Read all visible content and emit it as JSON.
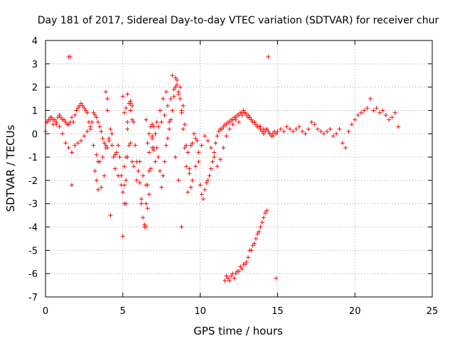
{
  "chart_data": {
    "type": "scatter",
    "title": "Day 181 of 2017, Sidereal Day-to-day VTEC variation (SDTVAR) for receiver chur",
    "xlabel": "GPS time / hours",
    "ylabel": "SDTVAR / TECUs",
    "xlim": [
      0,
      25
    ],
    "ylim": [
      -7,
      4
    ],
    "xticks": [
      "0",
      "5",
      "10",
      "15",
      "20",
      "25"
    ],
    "yticks": [
      "4",
      "3",
      "2",
      "1",
      "0",
      "-1",
      "-2",
      "-3",
      "-4",
      "-5",
      "-6",
      "-7"
    ],
    "grid": true,
    "marker": "+",
    "color": "#ff0000",
    "series": [
      {
        "name": "SDTVAR",
        "x": [
          0.0,
          0.1,
          0.2,
          0.3,
          0.4,
          0.5,
          0.6,
          0.7,
          0.8,
          0.9,
          1.0,
          1.1,
          1.2,
          1.3,
          1.4,
          1.5,
          1.6,
          1.7,
          1.8,
          1.9,
          2.0,
          2.1,
          2.2,
          2.3,
          2.4,
          2.5,
          2.6,
          2.7,
          2.8,
          2.9,
          3.0,
          3.1,
          3.2,
          3.3,
          3.4,
          3.5,
          3.6,
          3.7,
          3.8,
          3.9,
          4.0,
          4.1,
          4.2,
          4.3,
          4.4,
          4.5,
          4.6,
          4.7,
          4.8,
          4.9,
          5.0,
          5.1,
          5.2,
          5.3,
          5.4,
          5.5,
          5.6,
          5.7,
          5.8,
          5.9,
          6.0,
          6.1,
          6.2,
          6.3,
          6.4,
          6.5,
          6.6,
          6.7,
          6.8,
          6.9,
          7.0,
          7.1,
          7.2,
          7.3,
          7.4,
          7.5,
          7.6,
          7.7,
          7.8,
          7.9,
          8.0,
          8.1,
          8.2,
          8.3,
          8.4,
          8.5,
          8.6,
          8.7,
          8.8,
          8.9,
          9.0,
          9.1,
          9.2,
          9.3,
          9.4,
          9.5,
          9.6,
          9.7,
          9.8,
          9.9,
          10.0,
          10.1,
          10.2,
          10.3,
          10.4,
          10.5,
          10.6,
          10.7,
          10.8,
          10.9,
          11.0,
          11.1,
          11.2,
          11.3,
          11.4,
          11.5,
          11.6,
          11.7,
          11.8,
          11.9,
          12.0,
          12.1,
          12.2,
          12.3,
          12.4,
          12.5,
          12.6,
          12.7,
          12.8,
          12.9,
          13.0,
          13.1,
          13.2,
          13.3,
          13.4,
          13.5,
          13.6,
          13.7,
          13.8,
          13.9,
          14.0,
          14.1,
          14.2,
          14.3,
          14.4,
          14.5,
          14.6,
          14.7,
          14.8,
          14.9,
          15.0,
          15.2,
          15.4,
          15.6,
          15.8,
          16.0,
          16.2,
          16.4,
          16.6,
          16.8,
          17.0,
          17.2,
          17.4,
          17.6,
          17.8,
          18.0,
          18.2,
          18.4,
          18.6,
          18.8,
          19.0,
          19.2,
          19.4,
          19.6,
          19.8,
          20.0,
          20.2,
          20.4,
          20.6,
          20.8,
          21.0,
          21.2,
          21.4,
          21.6,
          21.8,
          22.0,
          22.2,
          22.4,
          22.6,
          22.8,
          0.1,
          0.3,
          0.5,
          0.7,
          0.9,
          1.1,
          1.3,
          1.5,
          1.7,
          1.9,
          2.1,
          2.3,
          2.5,
          2.7,
          2.9,
          3.1,
          3.3,
          3.5,
          3.7,
          3.9,
          4.1,
          4.3,
          4.5,
          4.7,
          4.9,
          5.1,
          5.3,
          5.5,
          5.7,
          5.9,
          6.1,
          6.3,
          6.5,
          6.7,
          6.9,
          7.1,
          7.3,
          7.5,
          7.7,
          7.9,
          8.1,
          8.3,
          8.5,
          8.7,
          8.9,
          9.1,
          9.3,
          9.5,
          9.7,
          9.9,
          10.1,
          10.3,
          10.5,
          10.7,
          10.9,
          11.1,
          11.3,
          11.5,
          11.7,
          11.9,
          12.1,
          12.3,
          12.5,
          12.7,
          12.9,
          13.1,
          13.3,
          13.5,
          13.7,
          13.9,
          14.1,
          14.3,
          14.5,
          14.7,
          14.9,
          11.6,
          11.7,
          11.8,
          11.9,
          12.0,
          12.1,
          12.2,
          12.3,
          12.4,
          12.5,
          12.6,
          12.7,
          12.8,
          12.9,
          13.0,
          13.1,
          13.2,
          13.3,
          13.4,
          13.5,
          13.6,
          13.7,
          13.8,
          13.9,
          14.0,
          14.1,
          14.2,
          14.3,
          14.4,
          1.5,
          1.6,
          1.7,
          3.2,
          3.4,
          3.6,
          3.8,
          4.0,
          4.2,
          5.0,
          5.1,
          5.2,
          5.3,
          5.4,
          5.5,
          5.6,
          6.2,
          6.4,
          6.5,
          6.6,
          6.7,
          6.8,
          6.9,
          7.0,
          7.2,
          7.4,
          7.6,
          7.8,
          8.0,
          8.2,
          8.4,
          8.6,
          8.8,
          9.0,
          9.2,
          9.4,
          3.9,
          4.0,
          5.0,
          5.1,
          5.2,
          5.5,
          5.6,
          6.9,
          7.0,
          8.4,
          8.6,
          8.8,
          5.2,
          5.3,
          6.5,
          6.6,
          6.7,
          3.3,
          3.4
        ],
        "y": [
          0.1,
          0.5,
          0.6,
          0.7,
          0.7,
          0.6,
          0.6,
          0.5,
          0.7,
          0.8,
          0.7,
          0.6,
          0.6,
          0.5,
          0.4,
          0.4,
          0.5,
          0.7,
          0.5,
          0.8,
          1.0,
          1.1,
          1.2,
          1.3,
          1.2,
          1.1,
          1.0,
          0.9,
          0.5,
          0.3,
          0.5,
          0.9,
          0.8,
          0.7,
          0.5,
          0.3,
          0.1,
          -0.2,
          -0.4,
          -0.5,
          -0.6,
          -0.2,
          0.2,
          -0.5,
          -1.0,
          -1.5,
          -0.8,
          -0.5,
          -1.0,
          -1.8,
          -2.5,
          -2.2,
          -1.0,
          0.5,
          1.3,
          1.4,
          1.2,
          0.5,
          -0.5,
          -1.2,
          -1.6,
          -2.1,
          -2.8,
          -3.6,
          -4.0,
          -3.0,
          -2.2,
          -2.6,
          -1.5,
          -0.2,
          -0.7,
          -1.2,
          -0.6,
          -1.0,
          -1.6,
          -2.3,
          -1.8,
          -1.2,
          -0.5,
          -0.2,
          0.2,
          0.6,
          1.0,
          1.6,
          2.0,
          2.1,
          1.8,
          1.5,
          1.0,
          0.2,
          -0.6,
          -1.4,
          -2.5,
          -1.5,
          -0.5,
          -0.4,
          0.0,
          -0.2,
          -0.3,
          -1.2,
          -2.2,
          -2.6,
          -2.8,
          -2.4,
          -2.1,
          -2.0,
          -1.8,
          -1.5,
          -1.2,
          -0.8,
          -0.4,
          -0.1,
          0.1,
          0.2,
          0.2,
          0.3,
          0.4,
          0.4,
          0.5,
          0.5,
          0.6,
          0.6,
          0.7,
          0.7,
          0.8,
          0.8,
          0.9,
          0.9,
          1.0,
          0.9,
          0.8,
          0.8,
          0.7,
          0.6,
          0.5,
          0.5,
          0.4,
          0.3,
          0.3,
          0.2,
          0.1,
          0.0,
          0.1,
          0.2,
          0.1,
          0.0,
          -0.1,
          0.0,
          0.1,
          0.0,
          0.1,
          0.2,
          0.1,
          0.3,
          0.2,
          0.1,
          0.2,
          0.3,
          0.1,
          0.0,
          0.2,
          0.5,
          0.4,
          0.2,
          0.1,
          0.0,
          0.1,
          0.2,
          -0.1,
          0.0,
          0.2,
          -0.4,
          -0.6,
          0.1,
          0.4,
          0.6,
          0.8,
          0.9,
          1.0,
          1.1,
          1.5,
          1.0,
          1.1,
          0.9,
          1.0,
          0.8,
          0.6,
          0.7,
          0.9,
          0.3,
          0.5,
          0.6,
          0.4,
          0.4,
          0.3,
          0.0,
          -0.4,
          -0.6,
          -0.8,
          -0.5,
          -0.4,
          -0.3,
          -0.1,
          0.1,
          0.2,
          -0.5,
          -0.9,
          -1.2,
          -1.0,
          -0.6,
          -0.3,
          0.0,
          -0.9,
          -1.8,
          -2.2,
          -1.4,
          0.2,
          -0.4,
          -1.4,
          -2.0,
          -1.2,
          -1.8,
          -2.2,
          -1.6,
          -0.6,
          0.0,
          0.3,
          0.5,
          0.8,
          1.2,
          1.5,
          1.9,
          2.3,
          2.0,
          1.2,
          -0.5,
          -1.7,
          -2.0,
          -1.4,
          -0.8,
          -0.5,
          -0.1,
          -0.3,
          -0.6,
          -1.0,
          -1.4,
          -1.1,
          -0.6,
          -0.1,
          0.2,
          0.4,
          0.6,
          0.5,
          0.8,
          0.9,
          0.7,
          0.6,
          0.5,
          0.3,
          0.3,
          0.2,
          0.2,
          0.0,
          -0.1,
          -6.2,
          -6.3,
          -6.1,
          -6.2,
          -6.3,
          -6.1,
          -6.0,
          -6.2,
          -6.0,
          -5.9,
          -5.9,
          -5.7,
          -5.8,
          -5.6,
          -5.6,
          -5.5,
          -5.3,
          -5.0,
          -5.0,
          -4.8,
          -4.7,
          -4.5,
          -4.3,
          -4.2,
          -4.0,
          -3.8,
          -3.6,
          -3.4,
          -3.3,
          3.3,
          3.3,
          3.3,
          -2.2,
          -1.6,
          -1.2,
          -2.3,
          -1.8,
          1.0,
          -3.5,
          -4.4,
          -3.0,
          -2.0,
          -1.0,
          -0.5,
          1.0,
          -1.2,
          -3.0,
          -3.9,
          -4.0,
          -3.2,
          0.0,
          0.3,
          -0.1,
          0.3,
          0.5,
          1.0,
          1.5,
          1.8,
          0.5,
          2.5,
          2.4,
          1.7,
          0.9,
          0.4,
          -0.8,
          -2.3,
          1.8,
          1.5,
          1.6,
          0.9,
          1.1,
          1.3,
          0.6,
          0.4,
          -0.6,
          -1.0,
          -2.0,
          -4.0,
          -3.0,
          1.7,
          0.6,
          -0.4,
          -0.8,
          -2.0,
          -2.4
        ]
      }
    ]
  }
}
